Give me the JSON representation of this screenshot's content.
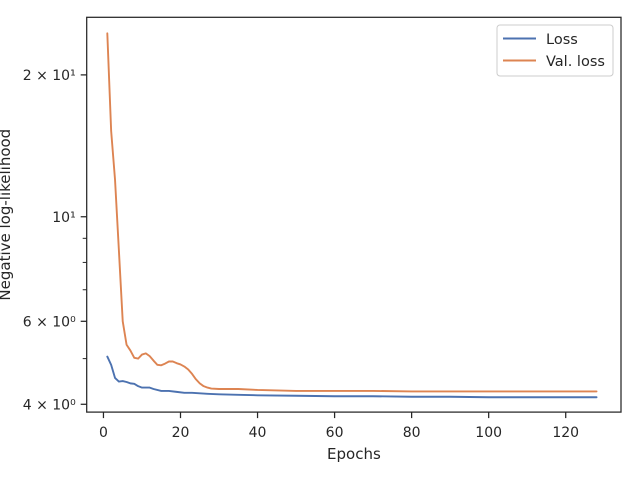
{
  "chart_data": {
    "type": "line",
    "xlabel": "Epochs",
    "ylabel": "Negative log-likelihood",
    "yscale": "log",
    "xlim": [
      -4.35,
      134.35
    ],
    "ylim": [
      3.85,
      26.5
    ],
    "x_ticks": [
      0,
      20,
      40,
      60,
      80,
      100,
      120
    ],
    "y_major_ticks": [
      {
        "value": 4,
        "label": "4 × 10⁰"
      },
      {
        "value": 6,
        "label": "6 × 10⁰"
      },
      {
        "value": 10,
        "label": "10¹"
      },
      {
        "value": 20,
        "label": "2 × 10¹"
      }
    ],
    "y_minor_ticks": [
      5,
      7,
      8,
      9
    ],
    "grid": false,
    "legend_position": "top-right",
    "series": [
      {
        "name": "Loss",
        "color": "#4c72b0",
        "x": [
          1,
          2,
          3,
          4,
          5,
          6,
          7,
          8,
          9,
          10,
          12,
          13,
          15,
          17,
          19,
          21,
          23,
          25,
          27,
          30,
          35,
          40,
          50,
          60,
          70,
          80,
          90,
          100,
          110,
          120,
          128
        ],
        "y": [
          5.05,
          4.85,
          4.55,
          4.47,
          4.48,
          4.46,
          4.43,
          4.42,
          4.37,
          4.34,
          4.34,
          4.31,
          4.27,
          4.27,
          4.25,
          4.23,
          4.23,
          4.22,
          4.21,
          4.2,
          4.19,
          4.18,
          4.17,
          4.16,
          4.16,
          4.15,
          4.15,
          4.14,
          4.14,
          4.14,
          4.14
        ]
      },
      {
        "name": "Val. loss",
        "color": "#dd8452",
        "x": [
          1,
          2,
          3,
          4,
          5,
          6,
          7,
          8,
          9,
          10,
          11,
          12,
          13,
          14,
          15,
          16,
          17,
          18,
          19,
          20,
          21,
          22,
          23,
          24,
          25,
          26,
          27,
          28,
          30,
          35,
          40,
          50,
          60,
          70,
          80,
          90,
          100,
          110,
          120,
          128
        ],
        "y": [
          24.5,
          15.2,
          12.0,
          8.5,
          6.0,
          5.35,
          5.2,
          5.02,
          5.0,
          5.1,
          5.13,
          5.06,
          4.95,
          4.85,
          4.84,
          4.88,
          4.93,
          4.93,
          4.89,
          4.86,
          4.81,
          4.74,
          4.64,
          4.52,
          4.43,
          4.37,
          4.34,
          4.32,
          4.31,
          4.31,
          4.29,
          4.27,
          4.27,
          4.27,
          4.26,
          4.26,
          4.26,
          4.26,
          4.26,
          4.26
        ]
      }
    ]
  }
}
